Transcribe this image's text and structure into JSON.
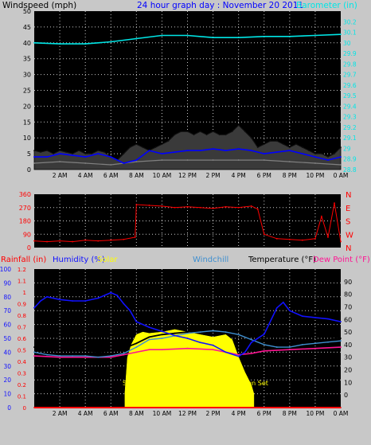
{
  "colors": {
    "background": "#c8c8c8",
    "plot_background": "#000000",
    "gridline": "#c8c8c8",
    "windspeed": "#000000",
    "gust": "#808080",
    "avg_wind": "#0000ff",
    "barometer": "#00e6e6",
    "wind_direction": "#ff0000",
    "rainfall": "#ff0000",
    "humidity": "#1111ff",
    "solar": "#ffff00",
    "windchill": "#3f8fd0",
    "temperature": "#000000",
    "dew_point": "#ff1493",
    "axis_blue": "#0000ff",
    "axis_cyan": "#00e6e6"
  },
  "chart_data": [
    {
      "type": "line",
      "title": "24 hour graph day : November 20 2011",
      "ylabel": "Windspeed (mph)",
      "y2label": "Barometer (in)",
      "ylim": [
        0,
        50
      ],
      "y2lim": [
        28.8,
        30.3
      ],
      "yticks": [
        "0",
        "5",
        "10",
        "15",
        "20",
        "25",
        "30",
        "35",
        "40",
        "45",
        "50"
      ],
      "y2ticks": [
        "28.8",
        "28.9",
        "29",
        "29.1",
        "29.2",
        "29.3",
        "29.4",
        "29.5",
        "29.6",
        "29.7",
        "29.8",
        "29.9",
        "30",
        "30.1",
        "30.2"
      ],
      "x_tick_labels": [
        "2 AM",
        "4 AM",
        "6 AM",
        "8 AM",
        "10 AM",
        "12 PM",
        "2 PM",
        "4 PM",
        "6 PM",
        "8 PM",
        "10 PM",
        "0 AM"
      ],
      "x_tick_hours": [
        2,
        4,
        6,
        8,
        10,
        12,
        14,
        16,
        18,
        20,
        22,
        24
      ],
      "grid": true,
      "series": [
        {
          "name": "Windspeed",
          "x": [
            0,
            0.5,
            1,
            1.5,
            2,
            2.5,
            3,
            3.5,
            4,
            4.5,
            5,
            5.5,
            6,
            6.5,
            7,
            7.5,
            8,
            8.5,
            9,
            9.5,
            10,
            10.5,
            11,
            11.5,
            12,
            12.5,
            13,
            13.5,
            14,
            14.5,
            15,
            15.5,
            16,
            16.5,
            17,
            17.5,
            18,
            18.5,
            19,
            19.5,
            20,
            20.5,
            21,
            21.5,
            22,
            22.5,
            23,
            23.5,
            24
          ],
          "values": [
            6,
            5.5,
            6,
            5,
            6,
            5.5,
            5,
            6,
            5,
            5,
            6,
            5.5,
            4,
            3,
            5,
            7,
            8,
            7,
            6,
            7,
            8,
            9,
            11,
            12,
            12,
            11,
            12,
            11,
            12,
            11,
            11,
            12,
            14,
            12,
            10,
            7,
            8,
            9,
            9,
            8,
            7,
            8,
            7,
            6,
            5,
            5,
            4,
            5,
            7
          ]
        },
        {
          "name": "Gust",
          "x": [
            0,
            2,
            4,
            6,
            8,
            10,
            12,
            14,
            16,
            18,
            20,
            22,
            24
          ],
          "values": [
            2,
            2.5,
            2,
            1.5,
            2.5,
            3,
            3,
            3,
            3,
            3,
            2.5,
            2,
            1.5
          ]
        },
        {
          "name": "Average Wind",
          "x": [
            0,
            1,
            2,
            3,
            4,
            5,
            6,
            7,
            8,
            9,
            10,
            11,
            12,
            13,
            14,
            15,
            16,
            17,
            18,
            19,
            20,
            21,
            22,
            23,
            24
          ],
          "values": [
            4,
            4,
            5,
            4.5,
            4,
            5,
            4,
            2,
            3,
            6,
            5,
            5.5,
            6,
            6,
            6.5,
            6,
            6.5,
            6,
            5,
            5.5,
            6,
            5,
            4,
            3,
            4
          ]
        },
        {
          "name": "Barometer",
          "x": [
            0,
            2,
            4,
            6,
            8,
            10,
            12,
            14,
            16,
            18,
            20,
            22,
            24
          ],
          "values": [
            30.0,
            29.99,
            29.99,
            30.01,
            30.04,
            30.07,
            30.07,
            30.05,
            30.05,
            30.06,
            30.06,
            30.07,
            30.08
          ]
        }
      ]
    },
    {
      "type": "scatter",
      "yticks": [
        "0",
        "90",
        "180",
        "270",
        "360"
      ],
      "ylim": [
        0,
        360
      ],
      "y2ticks": [
        "N",
        "W",
        "S",
        "E",
        "N"
      ],
      "grid": true,
      "series": [
        {
          "name": "Wind Direction",
          "x": [
            0,
            1,
            2,
            3,
            4,
            5,
            6,
            7,
            7.9,
            8,
            9,
            10,
            11,
            12,
            13,
            14,
            15,
            16,
            17,
            17.5,
            18,
            19,
            20,
            21,
            22,
            22.5,
            23,
            23.5,
            24
          ],
          "values": [
            45,
            40,
            45,
            40,
            50,
            45,
            50,
            55,
            70,
            290,
            285,
            280,
            270,
            275,
            270,
            265,
            275,
            270,
            280,
            260,
            90,
            60,
            55,
            50,
            60,
            210,
            70,
            300,
            40
          ]
        }
      ]
    },
    {
      "type": "line",
      "ylim": [
        0,
        100
      ],
      "y2lim": [
        -10,
        100
      ],
      "y_left_ticks": [
        "0",
        "10",
        "20",
        "30",
        "40",
        "50",
        "60",
        "70",
        "80",
        "90",
        "100"
      ],
      "rain_ticks": [
        "0",
        "0.1",
        "0.2",
        "0.3",
        "0.4",
        "0.5",
        "0.6",
        "0.7",
        "0.8",
        "0.9",
        "1",
        "1.1",
        "1.2"
      ],
      "y2ticks": [
        "0",
        "10",
        "20",
        "30",
        "40",
        "50",
        "60",
        "70",
        "80",
        "90"
      ],
      "labels": {
        "rainfall": "Rainfall (in)",
        "humidity": "Humidity (%)",
        "solar": "Solar",
        "windchill": "Windchill",
        "temperature": "Temperature (°F)",
        "dew_point": "Dew Point (°F)",
        "sunrise": "Sun Rise",
        "sunset": "Sun Set"
      },
      "grid": true,
      "series": [
        {
          "name": "Humidity",
          "x": [
            0,
            0.5,
            1,
            2,
            3,
            4,
            5,
            6,
            6.5,
            7,
            7.5,
            8,
            9,
            10,
            11,
            12,
            13,
            14,
            15,
            16,
            16.5,
            17,
            18,
            19,
            19.5,
            20,
            21,
            22,
            23,
            24
          ],
          "values": [
            72,
            77,
            80,
            78,
            77,
            77,
            79,
            83,
            81,
            75,
            70,
            62,
            58,
            55,
            52,
            50,
            47,
            45,
            40,
            37,
            40,
            47,
            53,
            72,
            76,
            70,
            66,
            65,
            64,
            62
          ]
        },
        {
          "name": "Temperature",
          "x": [
            0,
            1,
            2,
            3,
            4,
            5,
            6,
            7,
            8,
            9,
            10,
            11,
            12,
            13,
            14,
            15,
            16,
            17,
            18,
            19,
            20,
            21,
            22,
            23,
            24
          ],
          "values": [
            38,
            36,
            35,
            35,
            35,
            34,
            35,
            37,
            41,
            46,
            48,
            49,
            50,
            52,
            54,
            55,
            54,
            50,
            44,
            42,
            42,
            43,
            43,
            44,
            45
          ]
        },
        {
          "name": "Windchill",
          "x": [
            0,
            1,
            2,
            3,
            4,
            5,
            6,
            7,
            8,
            9,
            10,
            11,
            12,
            13,
            14,
            15,
            16,
            17,
            18,
            19,
            20,
            21,
            22,
            23,
            24
          ],
          "values": [
            34,
            32,
            31,
            31,
            31,
            30,
            31,
            33,
            38,
            44,
            45,
            47,
            49,
            50,
            51,
            50,
            48,
            44,
            40,
            38,
            38,
            40,
            41,
            42,
            43
          ]
        },
        {
          "name": "Dew Point",
          "x": [
            0,
            2,
            4,
            6,
            7,
            8,
            9,
            10,
            12,
            14,
            15,
            16,
            17,
            18,
            20,
            22,
            24
          ],
          "values": [
            31,
            30,
            30,
            30,
            32,
            34,
            36,
            36,
            37,
            36,
            34,
            32,
            33,
            35,
            36,
            37,
            38
          ]
        },
        {
          "name": "Solar",
          "x": [
            7.1,
            7.3,
            7.6,
            8,
            8.5,
            9,
            10,
            11,
            12,
            13,
            14,
            15,
            15.5,
            16,
            16.5,
            17,
            17.2
          ],
          "values": [
            2,
            30,
            40,
            48,
            50,
            49,
            50,
            52,
            50,
            48,
            46,
            48,
            44,
            30,
            18,
            8,
            1
          ]
        },
        {
          "name": "Rainfall",
          "x": [
            0,
            24
          ],
          "values": [
            0,
            0
          ]
        }
      ]
    }
  ]
}
